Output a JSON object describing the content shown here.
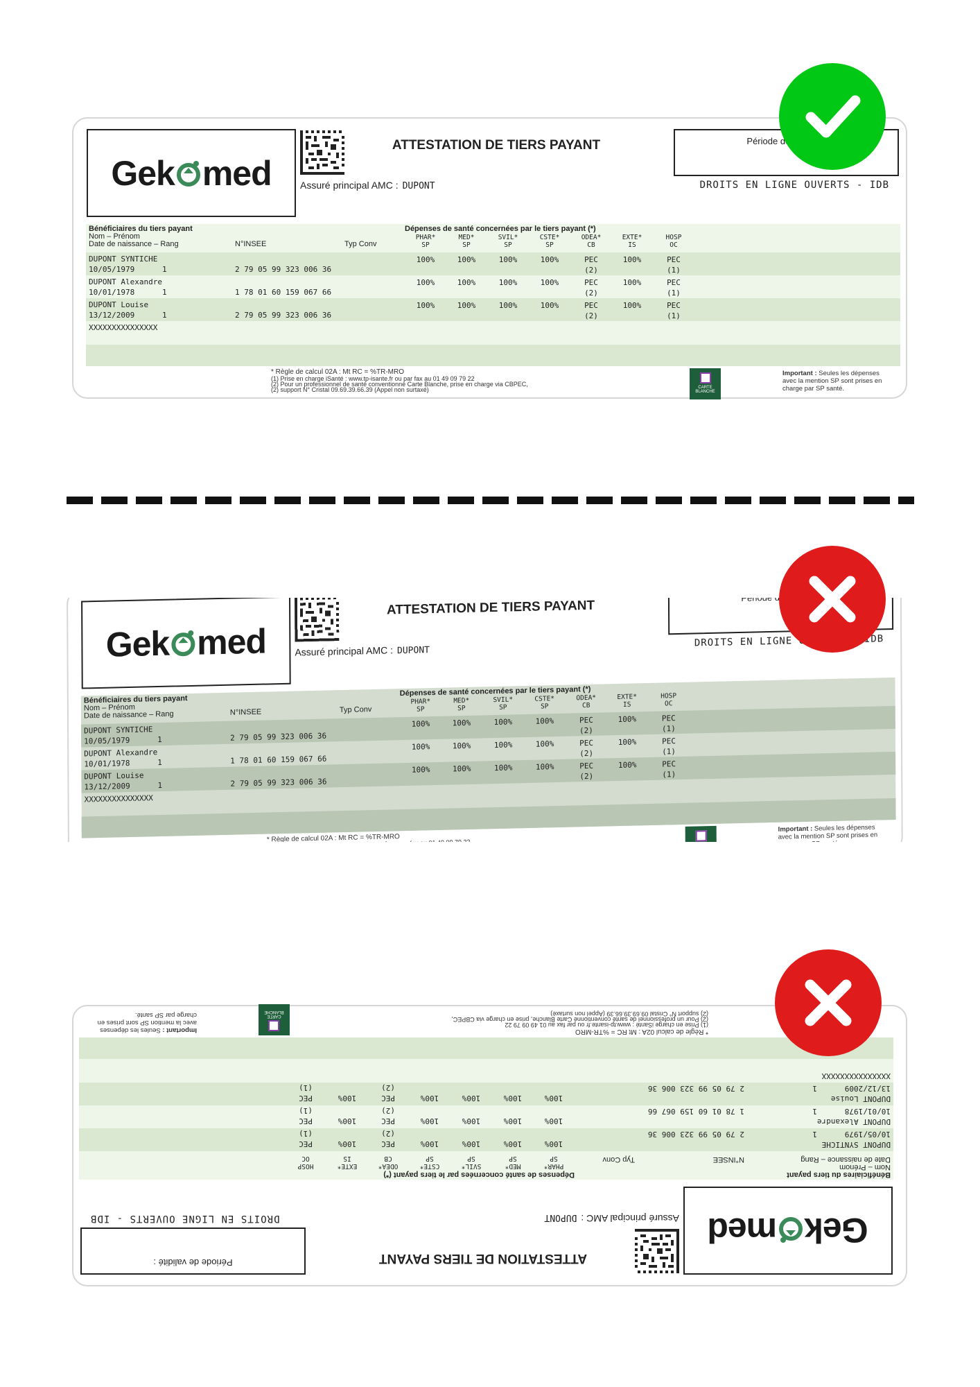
{
  "card": {
    "logo_text": "Gekomed",
    "logo_left": "Gek",
    "logo_right": "med",
    "title": "ATTESTATION DE TIERS PAYANT",
    "assure_label": "Assuré principal AMC :",
    "assure_value": "DUPONT",
    "periode_label": "Période de validité :",
    "droits": "DROITS EN LIGNE OUVERTS - IDB",
    "header": {
      "beneficiaires": "Bénéficiaires du tiers payant",
      "nom_prenom": "Nom – Prénom",
      "date_rang": "Date de naissance – Rang",
      "insee": "N°INSEE",
      "typ_conv": "Typ Conv",
      "depenses": "Dépenses de santé concernées par le tiers payant (*)",
      "columns": [
        {
          "code": "PHAR*",
          "sub": "SP"
        },
        {
          "code": "MED*",
          "sub": "SP"
        },
        {
          "code": "SVIL*",
          "sub": "SP"
        },
        {
          "code": "CSTE*",
          "sub": "SP"
        },
        {
          "code": "ODEA*",
          "sub": "CB"
        },
        {
          "code": "EXTE*",
          "sub": "IS"
        },
        {
          "code": "HOSP",
          "sub": "OC"
        }
      ]
    },
    "beneficiaries": [
      {
        "name": "DUPONT SYNTICHE",
        "birth": "10/05/1979",
        "rang": "1",
        "insee": "2 79 05 99 323 006 36",
        "phar": "100%",
        "med": "100%",
        "svil": "100%",
        "cste": "100%",
        "odea": "PEC",
        "odea_note": "(2)",
        "exte": "100%",
        "hosp": "PEC",
        "hosp_note": "(1)"
      },
      {
        "name": "DUPONT Alexandre",
        "birth": "10/01/1978",
        "rang": "1",
        "insee": "1 78 01 60 159 067 66",
        "phar": "100%",
        "med": "100%",
        "svil": "100%",
        "cste": "100%",
        "odea": "PEC",
        "odea_note": "(2)",
        "exte": "100%",
        "hosp": "PEC",
        "hosp_note": "(1)"
      },
      {
        "name": "DUPONT Louise",
        "birth": "13/12/2009",
        "rang": "1",
        "insee": "2 79 05 99 323 006 36",
        "phar": "100%",
        "med": "100%",
        "svil": "100%",
        "cste": "100%",
        "odea": "PEC",
        "odea_note": "(2)",
        "exte": "100%",
        "hosp": "PEC",
        "hosp_note": "(1)"
      }
    ],
    "placeholder_row": "XXXXXXXXXXXXXXX",
    "footnotes": {
      "regle": "* Règle de calcul 02A : Mt RC = %TR-MRO",
      "n1": "(1) Prise en charge iSanté : www.tp-isante.fr ou par fax au 01 49 09 79 22",
      "n2": "(2) Pour un professionnel de santé conventionné Carte Blanche, prise en charge via CBPEC,",
      "n3": "(2) support N° Cristal 09.69.39.66.39 (Appel non surtaxé)"
    },
    "carte_blanche": {
      "line1": "CARTE",
      "line2": "BLANCHE"
    },
    "important_label": "Important :",
    "important_text": "Seules les dépenses avec la mention SP sont prises en charge par SP santé."
  },
  "examples": [
    {
      "status": "correct",
      "icon": "check-icon",
      "color": "#00c814"
    },
    {
      "status": "incorrect",
      "icon": "cross-icon",
      "color": "#e01b1b"
    },
    {
      "status": "incorrect",
      "icon": "cross-icon",
      "color": "#e01b1b"
    }
  ],
  "colors": {
    "table_bg": "#eef6ea",
    "row_dark": "#dae8d2",
    "gecko_green": "#3a8a5a"
  }
}
